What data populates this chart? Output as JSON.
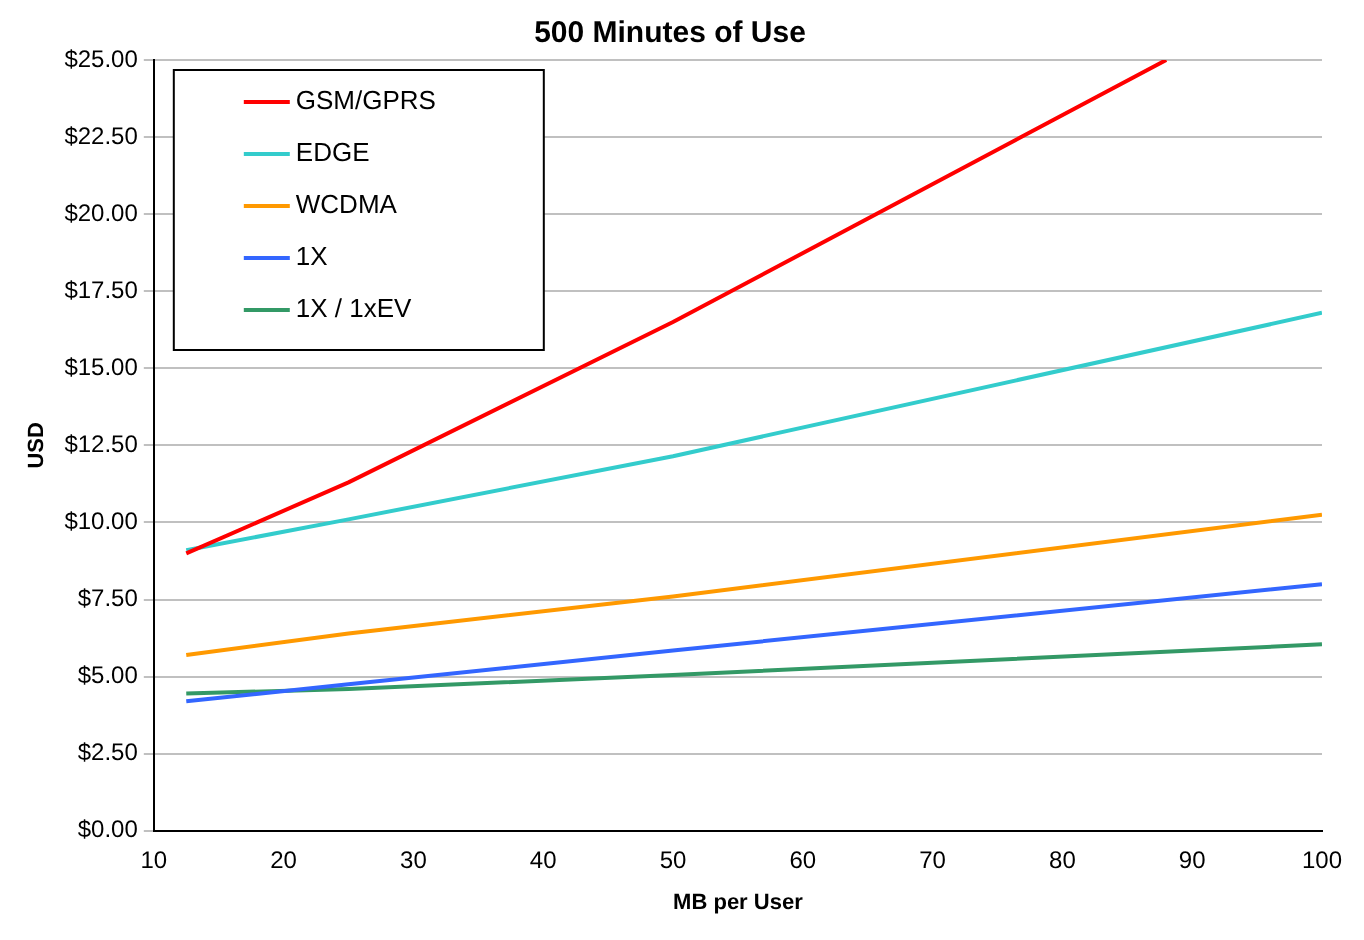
{
  "chart_data": {
    "type": "line",
    "title": "500 Minutes of Use",
    "xlabel": "MB per User",
    "ylabel": "USD",
    "series": [
      {
        "name": "GSM/GPRS",
        "color": "#ff0000",
        "x": [
          12.5,
          25,
          50,
          88
        ],
        "values": [
          9.0,
          11.3,
          16.5,
          25.0
        ]
      },
      {
        "name": "EDGE",
        "color": "#33cccc",
        "x": [
          12.5,
          25,
          50,
          100
        ],
        "values": [
          9.1,
          10.1,
          12.15,
          16.8
        ]
      },
      {
        "name": "WCDMA",
        "color": "#ff9900",
        "x": [
          12.5,
          25,
          50,
          100
        ],
        "values": [
          5.7,
          6.4,
          7.6,
          10.25
        ]
      },
      {
        "name": "1X",
        "color": "#3366ff",
        "x": [
          12.5,
          25,
          50,
          100
        ],
        "values": [
          4.2,
          4.75,
          5.85,
          8.0
        ]
      },
      {
        "name": "1X / 1xEV",
        "color": "#339966",
        "x": [
          12.5,
          25,
          50,
          100
        ],
        "values": [
          4.45,
          4.6,
          5.05,
          6.05
        ]
      }
    ],
    "xlim": [
      10,
      100
    ],
    "xticks": [
      10,
      20,
      30,
      40,
      50,
      60,
      70,
      80,
      90,
      100
    ],
    "ylim": [
      0,
      25
    ],
    "yticks": [
      {
        "value": 0,
        "label": "$0.00"
      },
      {
        "value": 2.5,
        "label": "$2.50"
      },
      {
        "value": 5,
        "label": "$5.00"
      },
      {
        "value": 7.5,
        "label": "$7.50"
      },
      {
        "value": 10,
        "label": "$10.00"
      },
      {
        "value": 12.5,
        "label": "$12.50"
      },
      {
        "value": 15,
        "label": "$15.00"
      },
      {
        "value": 17.5,
        "label": "$17.50"
      },
      {
        "value": 20,
        "label": "$20.00"
      },
      {
        "value": 22.5,
        "label": "$22.50"
      },
      {
        "value": 25,
        "label": "$25.00"
      }
    ],
    "grid": "y",
    "legend": "top left",
    "marker": "none",
    "line_style": "solid"
  }
}
